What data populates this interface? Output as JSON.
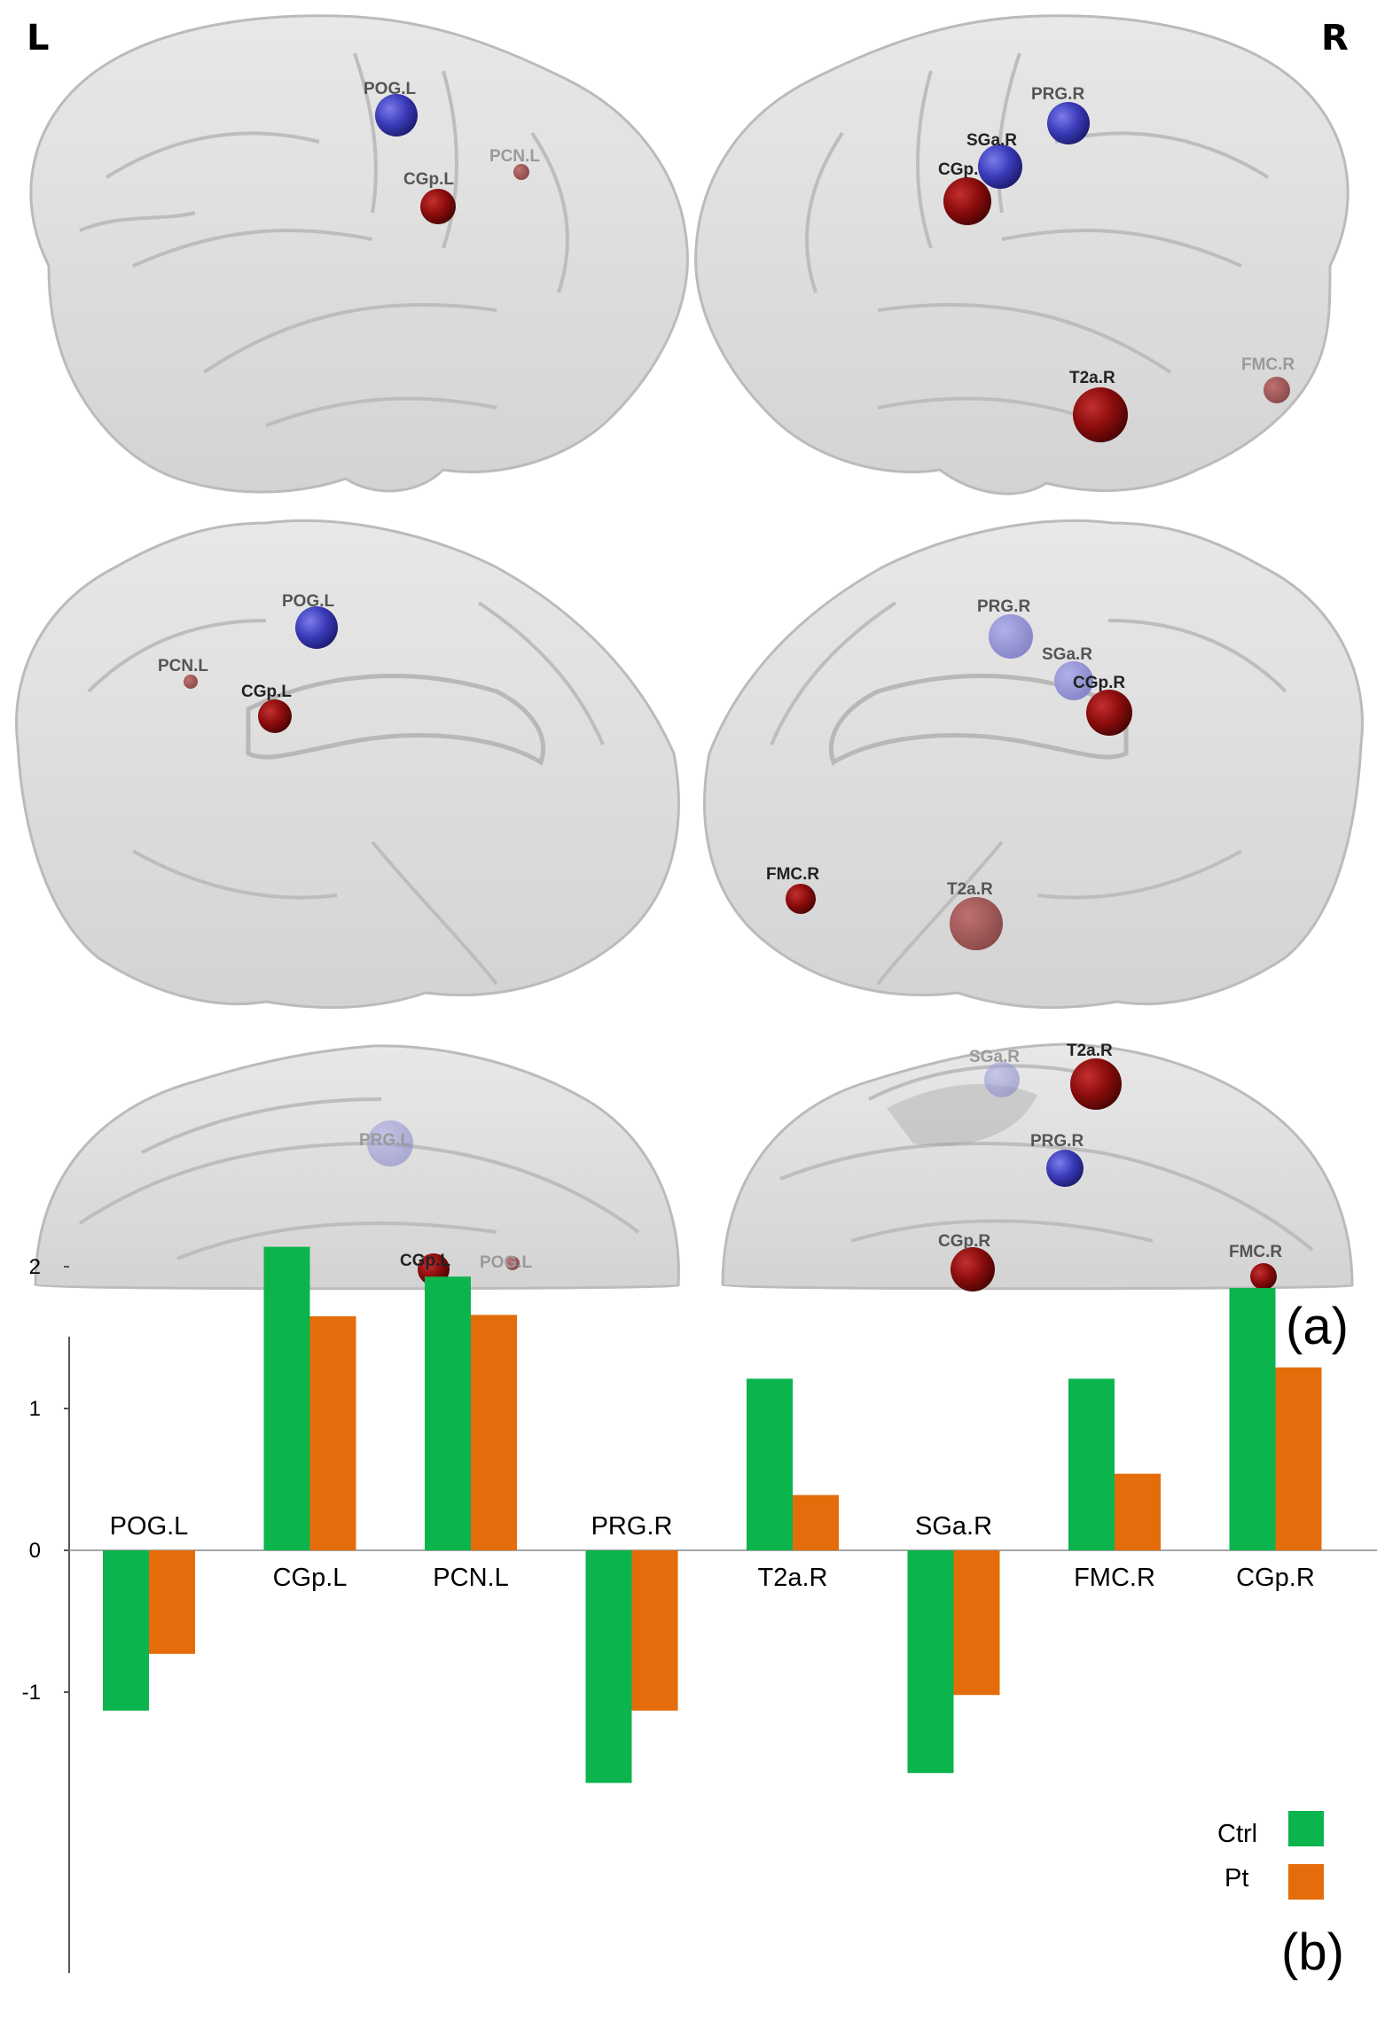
{
  "hemisphere_labels": {
    "left": "L",
    "right": "R"
  },
  "panel_tags": {
    "a": "(a)",
    "b": "(b)"
  },
  "colors": {
    "ctrl": "#0bb44c",
    "pt": "#e46c0a",
    "node_red": "#8b0c0c",
    "node_blue": "#3a3ab8",
    "brain": "#d9d9d9"
  },
  "brain_nodes": {
    "lateral_left": [
      "POG.L",
      "CGp.L",
      "PCN.L"
    ],
    "lateral_right": [
      "PRG.R",
      "SGa.R",
      "CGp.",
      "T2a.R",
      "FMC.R"
    ],
    "medial_left": [
      "POG.L",
      "PCN.L",
      "CGp.L"
    ],
    "medial_right": [
      "PRG.R",
      "SGa.R",
      "CGp.R",
      "FMC.R",
      "T2a.R"
    ],
    "dorsal_left": [
      "PRG.L",
      "CGp.L",
      "POG.L"
    ],
    "dorsal_right": [
      "SGa.R",
      "T2a.R",
      "PRG.R",
      "CGp.R",
      "FMC.R"
    ]
  },
  "chart_data": {
    "type": "bar",
    "categories": [
      "POG.L",
      "CGp.L",
      "PCN.L",
      "PRG.R",
      "T2a.R",
      "SGa.R",
      "FMC.R",
      "CGp.R"
    ],
    "series": [
      {
        "name": "Ctrl",
        "values": [
          -1.13,
          2.14,
          1.93,
          -1.64,
          1.21,
          -1.57,
          1.21,
          1.85
        ]
      },
      {
        "name": "Pt",
        "values": [
          -0.73,
          1.65,
          1.66,
          -1.13,
          0.39,
          -1.02,
          0.54,
          1.29
        ]
      }
    ],
    "yticks": [
      -1,
      0,
      1,
      2
    ],
    "ylim": [
      -1.8,
      2.55
    ],
    "legend": "bottom-right",
    "grid": false
  }
}
